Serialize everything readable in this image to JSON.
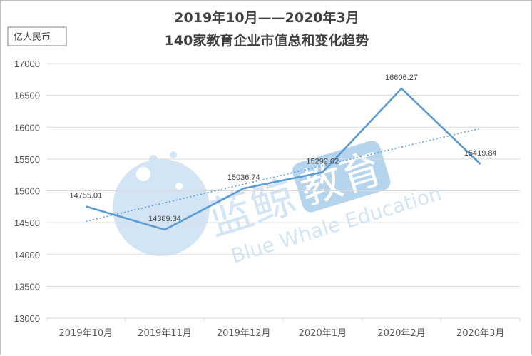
{
  "chart_data": {
    "type": "line",
    "title_lines": [
      "2019年10月——2020年3月",
      "140家教育企业市值总和变化趋势"
    ],
    "unit_label": "亿人民币",
    "categories": [
      "2019年10月",
      "2019年11月",
      "2019年12月",
      "2020年1月",
      "2020年2月",
      "2020年3月"
    ],
    "values": [
      14755.01,
      14389.34,
      15036.74,
      15292.02,
      16606.27,
      15419.84
    ],
    "data_labels": [
      "14755.01",
      "14389.34",
      "15036.74",
      "15292.02",
      "16606.27",
      "15419.84"
    ],
    "ylim": [
      13000,
      17000
    ],
    "yticks": [
      "13000",
      "13500",
      "14000",
      "14500",
      "15000",
      "15500",
      "16000",
      "16500",
      "17000"
    ],
    "trendline": "linear",
    "grid": true,
    "legend": "none",
    "colors": {
      "line": "#5b9bd5",
      "trend": "#5b9bd5",
      "grid": "#d9d9d9",
      "text": "#404040"
    }
  },
  "watermark": {
    "cn_left": "蓝鲸",
    "cn_box": "教育",
    "en": "Blue Whale Education",
    "color": "#cfe3f3",
    "box_color": "#aed1ee"
  }
}
